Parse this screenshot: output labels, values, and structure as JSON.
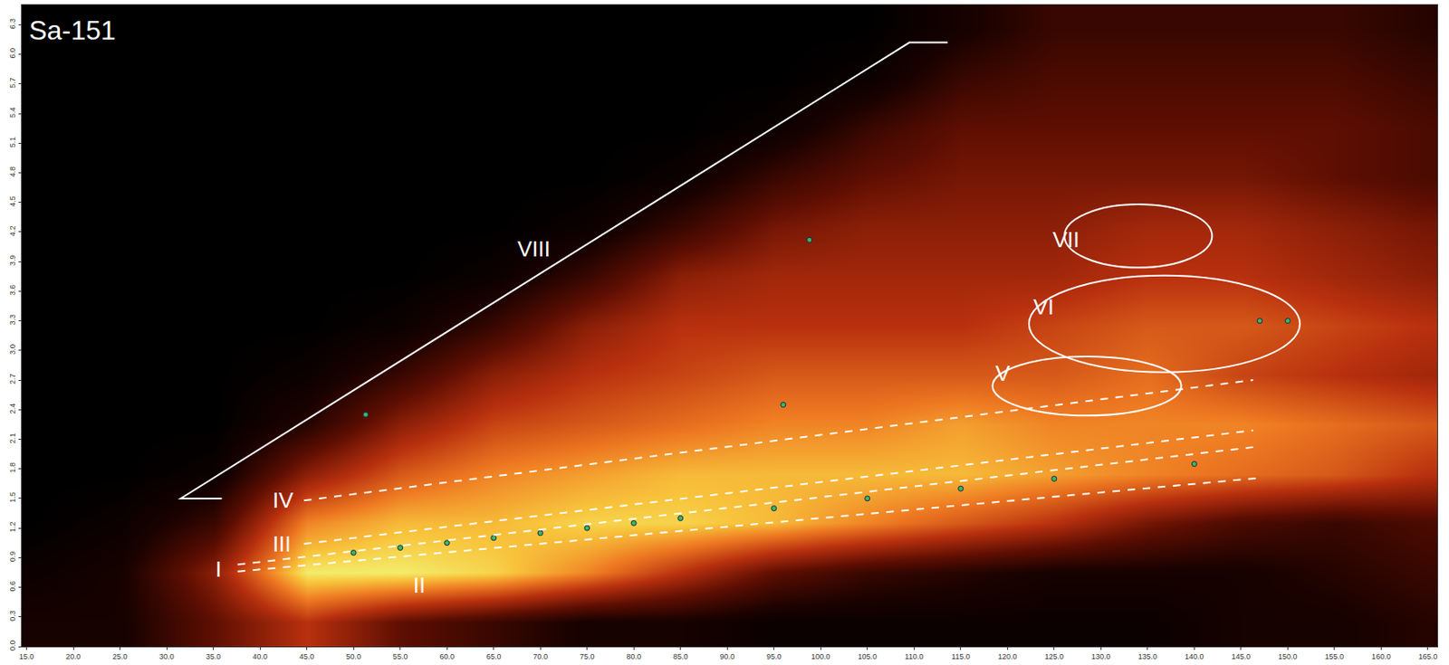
{
  "chart_data": {
    "type": "heatmap",
    "title": "Sa-151",
    "x": [
      15,
      25,
      35,
      45,
      55,
      65,
      75,
      85,
      95,
      105,
      115,
      125,
      135,
      145,
      155,
      165
    ],
    "y": [
      0.25,
      0.75,
      1.25,
      1.75,
      2.25,
      2.75,
      3.25,
      3.75,
      4.25,
      4.75,
      5.25,
      5.75,
      6.25
    ],
    "z": [
      [
        1,
        1,
        3,
        5,
        3,
        2,
        1,
        1,
        0.5,
        0.5,
        0.5,
        0.5,
        0.5,
        1,
        1,
        1.5
      ],
      [
        0.5,
        1,
        4,
        9,
        9,
        8.5,
        7,
        5,
        3,
        2,
        1.5,
        1,
        1,
        1,
        1.5,
        2
      ],
      [
        0,
        0.5,
        2,
        7,
        8,
        8,
        8.5,
        8.5,
        8,
        7,
        6,
        5,
        3.5,
        2.5,
        2,
        2.5
      ],
      [
        0,
        0,
        0.5,
        4,
        6,
        7,
        7.5,
        8,
        8,
        8,
        8,
        7.5,
        7,
        6.5,
        6,
        5
      ],
      [
        0,
        0,
        0,
        1.5,
        4,
        5.5,
        6,
        6.5,
        7,
        7,
        7.5,
        7,
        7,
        7,
        6.5,
        6
      ],
      [
        0,
        0,
        0,
        0.5,
        2,
        4,
        5,
        5.5,
        6,
        6,
        6,
        6,
        6.5,
        5.5,
        5,
        4.5
      ],
      [
        0,
        0,
        0,
        0,
        0.5,
        2,
        4,
        5,
        5,
        5,
        5,
        5.5,
        6,
        6,
        5.5,
        5
      ],
      [
        0,
        0,
        0,
        0,
        0,
        0.5,
        2,
        4,
        4.5,
        4.5,
        4.5,
        4.5,
        5,
        5,
        4.5,
        4
      ],
      [
        0,
        0,
        0,
        0,
        0,
        0,
        0.5,
        2,
        3.5,
        4,
        4,
        4,
        4.5,
        4.5,
        4,
        3.5
      ],
      [
        0,
        0,
        0,
        0,
        0,
        0,
        0,
        0.5,
        2,
        3,
        3.5,
        3.5,
        3.5,
        3.5,
        3,
        2.5
      ],
      [
        0,
        0,
        0,
        0,
        0,
        0,
        0,
        0,
        0.5,
        2,
        3,
        3,
        3,
        3,
        3,
        2.5
      ],
      [
        0,
        0,
        0,
        0,
        0,
        0,
        0,
        0,
        0,
        0.5,
        2,
        2.5,
        2.5,
        2.5,
        2.5,
        2
      ],
      [
        0,
        0,
        0,
        0,
        0,
        0,
        0,
        0,
        0,
        0,
        1,
        2,
        2,
        2,
        2,
        1.5
      ]
    ],
    "zlim": [
      0,
      10
    ],
    "peaks": {
      "x": [
        50,
        55,
        60,
        65,
        70,
        75,
        80,
        85,
        95,
        105,
        115,
        125,
        140,
        147,
        150,
        96,
        98.8,
        51.3
      ],
      "y": [
        0.95,
        1.0,
        1.05,
        1.1,
        1.15,
        1.2,
        1.25,
        1.3,
        1.4,
        1.5,
        1.6,
        1.7,
        1.85,
        3.3,
        3.3,
        2.45,
        4.12,
        2.35
      ]
    },
    "xlim": [
      14.5,
      166
    ],
    "ylim": [
      0,
      6.5
    ],
    "xticks": [
      {
        "value": 15,
        "label": "15.0"
      },
      {
        "value": 20,
        "label": "20.0"
      },
      {
        "value": 25,
        "label": "25.0"
      },
      {
        "value": 30,
        "label": "30.0"
      },
      {
        "value": 35,
        "label": "35.0"
      },
      {
        "value": 40,
        "label": "40.0"
      },
      {
        "value": 45,
        "label": "45.0"
      },
      {
        "value": 50,
        "label": "50.0"
      },
      {
        "value": 55,
        "label": "55.0"
      },
      {
        "value": 60,
        "label": "60.0"
      },
      {
        "value": 65,
        "label": "65.0"
      },
      {
        "value": 70,
        "label": "70.0"
      },
      {
        "value": 75,
        "label": "75.0"
      },
      {
        "value": 80,
        "label": "80.0"
      },
      {
        "value": 85,
        "label": "85.0"
      },
      {
        "value": 90,
        "label": "90.0"
      },
      {
        "value": 95,
        "label": "95.0"
      },
      {
        "value": 100,
        "label": "100.0"
      },
      {
        "value": 105,
        "label": "105.0"
      },
      {
        "value": 110,
        "label": "110.0"
      },
      {
        "value": 115,
        "label": "115.0"
      },
      {
        "value": 120,
        "label": "120.0"
      },
      {
        "value": 125,
        "label": "125.0"
      },
      {
        "value": 130,
        "label": "130.0"
      },
      {
        "value": 135,
        "label": "135.0"
      },
      {
        "value": 140,
        "label": "140.0"
      },
      {
        "value": 145,
        "label": "145.0"
      },
      {
        "value": 150,
        "label": "150.0"
      },
      {
        "value": 155,
        "label": "155.0"
      },
      {
        "value": 160,
        "label": "160.0"
      },
      {
        "value": 165,
        "label": "165.0"
      }
    ],
    "yticks": [
      {
        "value": 0,
        "label": "0.0"
      },
      {
        "value": 0.3,
        "label": "0.3"
      },
      {
        "value": 0.6,
        "label": "0.6"
      },
      {
        "value": 0.9,
        "label": "0.9"
      },
      {
        "value": 1.2,
        "label": "1.2"
      },
      {
        "value": 1.5,
        "label": "1.5"
      },
      {
        "value": 1.8,
        "label": "1.8"
      },
      {
        "value": 2.1,
        "label": "2.1"
      },
      {
        "value": 2.4,
        "label": "2.4"
      },
      {
        "value": 2.7,
        "label": "2.7"
      },
      {
        "value": 3,
        "label": "3.0"
      },
      {
        "value": 3.3,
        "label": "3.3"
      },
      {
        "value": 3.6,
        "label": "3.6"
      },
      {
        "value": 3.9,
        "label": "3.9"
      },
      {
        "value": 4.2,
        "label": "4.2"
      },
      {
        "value": 4.5,
        "label": "4.5"
      },
      {
        "value": 4.8,
        "label": "4.8"
      },
      {
        "value": 5.1,
        "label": "5.1"
      },
      {
        "value": 5.4,
        "label": "5.4"
      },
      {
        "value": 5.7,
        "label": "5.7"
      },
      {
        "value": 6,
        "label": "6.0"
      },
      {
        "value": 6.3,
        "label": "6.3"
      }
    ],
    "grid": false,
    "regions": [
      {
        "label": "I",
        "shape": "line",
        "line_style": "dashed",
        "x": [
          37.6,
          147.2
        ],
        "y": [
          0.76,
          1.71
        ],
        "label_x": 35.5,
        "label_y": 0.78
      },
      {
        "label": "II",
        "shape": "line",
        "line_style": "dashed",
        "x": [
          37.6,
          146.3
        ],
        "y": [
          0.83,
          2.02
        ],
        "label_x": 57,
        "label_y": 0.62
      },
      {
        "label": "III",
        "shape": "line",
        "line_style": "dashed",
        "x": [
          44.7,
          146.3
        ],
        "y": [
          1.04,
          2.19
        ],
        "label_x": 42.3,
        "label_y": 1.04
      },
      {
        "label": "IV",
        "shape": "line",
        "line_style": "dashed",
        "x": [
          44.7,
          146.3
        ],
        "y": [
          1.48,
          2.7
        ],
        "label_x": 42.5,
        "label_y": 1.48
      },
      {
        "label": "V",
        "shape": "ellipse",
        "line_style": "solid",
        "x": [
          118.4,
          138.6
        ],
        "y": [
          2.34,
          2.94
        ],
        "label_x": 119.5,
        "label_y": 2.77
      },
      {
        "label": "VI",
        "shape": "ellipse",
        "line_style": "solid",
        "x": [
          122.3,
          151.3
        ],
        "y": [
          2.78,
          3.76
        ],
        "label_x": 123.9,
        "label_y": 3.44
      },
      {
        "label": "VII",
        "shape": "ellipse",
        "line_style": "solid",
        "x": [
          126.1,
          141.9
        ],
        "y": [
          3.84,
          4.48
        ],
        "label_x": 126.3,
        "label_y": 4.12
      },
      {
        "label": "VIII",
        "shape": "polyline",
        "line_style": "solid",
        "x": [
          35.9,
          31.5,
          109.5,
          113.6
        ],
        "y": [
          1.5,
          1.5,
          6.12,
          6.12
        ],
        "label_x": 69.3,
        "label_y": 4.03
      }
    ]
  }
}
